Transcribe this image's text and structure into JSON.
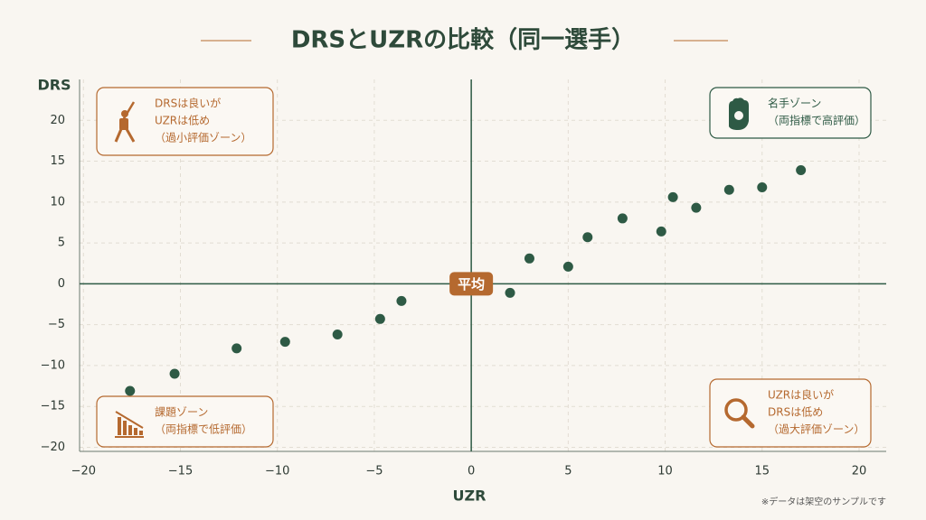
{
  "chart_data": {
    "type": "scatter",
    "title": "DRSとUZRの比較（同一選手）",
    "x_label": "UZR",
    "y_label": "DRS",
    "center_label": "平均",
    "note": "※データは架空のサンプルです",
    "color": "#2e5a45",
    "grid": true,
    "xlim": [
      -20.2,
      21.4
    ],
    "ylim": [
      -20.5,
      25
    ],
    "xticks": [
      {
        "value": -20,
        "label": "−20"
      },
      {
        "value": -15,
        "label": "−15"
      },
      {
        "value": -10,
        "label": "−10"
      },
      {
        "value": -5,
        "label": "−5"
      },
      0,
      5,
      10,
      15,
      20
    ],
    "yticks": [
      {
        "value": -20,
        "label": "−20"
      },
      {
        "value": -15,
        "label": "−15"
      },
      {
        "value": -10,
        "label": "−10"
      },
      {
        "value": -5,
        "label": "−5"
      },
      0,
      5,
      10,
      15,
      20
    ],
    "x": [
      -17.6,
      -15.3,
      -12.1,
      -9.6,
      -6.9,
      -4.7,
      -3.6,
      2.0,
      3.0,
      5.0,
      6.0,
      7.8,
      9.8,
      10.4,
      11.6,
      13.3,
      15.0,
      17.0
    ],
    "values": [
      -13.1,
      -11.0,
      -7.9,
      -7.1,
      -6.2,
      -4.3,
      -2.1,
      -1.1,
      3.1,
      2.1,
      5.7,
      8.0,
      6.4,
      10.6,
      9.3,
      11.5,
      11.8,
      13.9
    ],
    "annotations": [
      {
        "corner": "top-left",
        "color": "#b5692f",
        "lines": [
          "DRSは良いが",
          "UZRは低め",
          "（過小評価ゾーン）"
        ]
      },
      {
        "corner": "top-right",
        "color": "#2e5a45",
        "lines": [
          "名手ゾーン",
          "（両指標で高評価）"
        ]
      },
      {
        "corner": "bottom-left",
        "color": "#b5692f",
        "lines": [
          "課題ゾーン",
          "（両指標で低評価）"
        ]
      },
      {
        "corner": "bottom-right",
        "color": "#b5692f",
        "lines": [
          "UZRは良いが",
          "DRSは低め",
          "（過大評価ゾーン）"
        ]
      }
    ]
  }
}
